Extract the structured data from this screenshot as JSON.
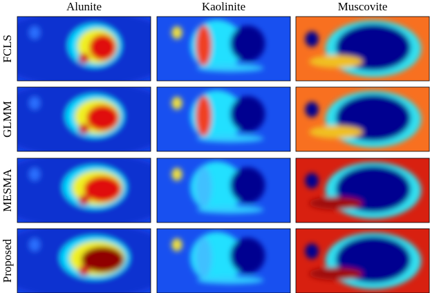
{
  "columns": [
    "Alunite",
    "Kaolinite",
    "Muscovite"
  ],
  "rows": [
    "FCLS",
    "GLMM",
    "MESMA",
    "Proposed"
  ]
}
